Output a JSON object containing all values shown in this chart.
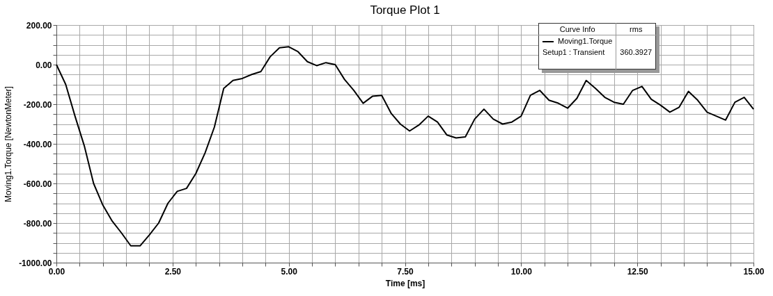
{
  "chart_data": {
    "type": "line",
    "title": "Torque Plot 1",
    "xlabel": "Time [ms]",
    "ylabel": "Moving1.Torque [NewtonMeter]",
    "x": [
      0,
      0.2,
      0.4,
      0.6,
      0.8,
      1.0,
      1.2,
      1.4,
      1.6,
      1.8,
      2.0,
      2.2,
      2.4,
      2.6,
      2.8,
      3.0,
      3.2,
      3.4,
      3.6,
      3.8,
      4.0,
      4.2,
      4.4,
      4.6,
      4.8,
      5.0,
      5.2,
      5.4,
      5.6,
      5.8,
      6.0,
      6.2,
      6.4,
      6.6,
      6.8,
      7.0,
      7.2,
      7.4,
      7.6,
      7.8,
      8.0,
      8.2,
      8.4,
      8.6,
      8.8,
      9.0,
      9.2,
      9.4,
      9.6,
      9.8,
      10.0,
      10.2,
      10.4,
      10.6,
      10.8,
      11.0,
      11.2,
      11.4,
      11.6,
      11.8,
      12.0,
      12.2,
      12.4,
      12.6,
      12.8,
      13.0,
      13.2,
      13.4,
      13.6,
      13.8,
      14.0,
      14.2,
      14.4,
      14.6,
      14.8,
      15.0
    ],
    "series": [
      {
        "name": "Moving1.Torque",
        "color": "#000000",
        "values": [
          0,
          -100,
          -260,
          -410,
          -600,
          -710,
          -790,
          -850,
          -915,
          -915,
          -860,
          -800,
          -700,
          -640,
          -625,
          -550,
          -445,
          -315,
          -120,
          -80,
          -70,
          -50,
          -35,
          40,
          85,
          90,
          65,
          15,
          -5,
          10,
          0,
          -75,
          -130,
          -195,
          -160,
          -155,
          -245,
          -300,
          -335,
          -305,
          -260,
          -290,
          -355,
          -370,
          -365,
          -275,
          -225,
          -275,
          -300,
          -290,
          -260,
          -155,
          -130,
          -180,
          -195,
          -220,
          -170,
          -80,
          -120,
          -165,
          -190,
          -200,
          -130,
          -110,
          -175,
          -205,
          -240,
          -215,
          -135,
          -180,
          -240,
          -260,
          -280,
          -190,
          -165,
          -225
        ]
      }
    ],
    "xlim": [
      0,
      15
    ],
    "ylim": [
      -1000,
      200
    ],
    "xticks": [
      {
        "value": 0,
        "label": "0.00"
      },
      {
        "value": 0.5,
        "label": null
      },
      {
        "value": 1,
        "label": null
      },
      {
        "value": 1.5,
        "label": null
      },
      {
        "value": 2,
        "label": null
      },
      {
        "value": 2.5,
        "label": "2.50"
      },
      {
        "value": 3,
        "label": null
      },
      {
        "value": 3.5,
        "label": null
      },
      {
        "value": 4,
        "label": null
      },
      {
        "value": 4.5,
        "label": null
      },
      {
        "value": 5,
        "label": "5.00"
      },
      {
        "value": 5.5,
        "label": null
      },
      {
        "value": 6,
        "label": null
      },
      {
        "value": 6.5,
        "label": null
      },
      {
        "value": 7,
        "label": null
      },
      {
        "value": 7.5,
        "label": "7.50"
      },
      {
        "value": 8,
        "label": null
      },
      {
        "value": 8.5,
        "label": null
      },
      {
        "value": 9,
        "label": null
      },
      {
        "value": 9.5,
        "label": null
      },
      {
        "value": 10,
        "label": "10.00"
      },
      {
        "value": 10.5,
        "label": null
      },
      {
        "value": 11,
        "label": null
      },
      {
        "value": 11.5,
        "label": null
      },
      {
        "value": 12,
        "label": null
      },
      {
        "value": 12.5,
        "label": "12.50"
      },
      {
        "value": 13,
        "label": null
      },
      {
        "value": 13.5,
        "label": null
      },
      {
        "value": 14,
        "label": null
      },
      {
        "value": 14.5,
        "label": null
      },
      {
        "value": 15,
        "label": "15.00"
      }
    ],
    "yticks": [
      {
        "value": -1000,
        "label": "-1000.00"
      },
      {
        "value": -950,
        "label": null
      },
      {
        "value": -900,
        "label": null
      },
      {
        "value": -850,
        "label": null
      },
      {
        "value": -800,
        "label": "-800.00"
      },
      {
        "value": -750,
        "label": null
      },
      {
        "value": -700,
        "label": null
      },
      {
        "value": -650,
        "label": null
      },
      {
        "value": -600,
        "label": "-600.00"
      },
      {
        "value": -550,
        "label": null
      },
      {
        "value": -500,
        "label": null
      },
      {
        "value": -450,
        "label": null
      },
      {
        "value": -400,
        "label": "-400.00"
      },
      {
        "value": -350,
        "label": null
      },
      {
        "value": -300,
        "label": null
      },
      {
        "value": -250,
        "label": null
      },
      {
        "value": -200,
        "label": "-200.00"
      },
      {
        "value": -150,
        "label": null
      },
      {
        "value": -100,
        "label": null
      },
      {
        "value": -50,
        "label": null
      },
      {
        "value": 0,
        "label": "0.00"
      },
      {
        "value": 50,
        "label": null
      },
      {
        "value": 100,
        "label": null
      },
      {
        "value": 150,
        "label": null
      },
      {
        "value": 200,
        "label": "200.00"
      }
    ],
    "grid": true,
    "legend": "top right",
    "line_style": "solid",
    "annotations": [
      "Curve Info",
      "rms",
      "Setup1 : Transient",
      "360.3927"
    ]
  }
}
